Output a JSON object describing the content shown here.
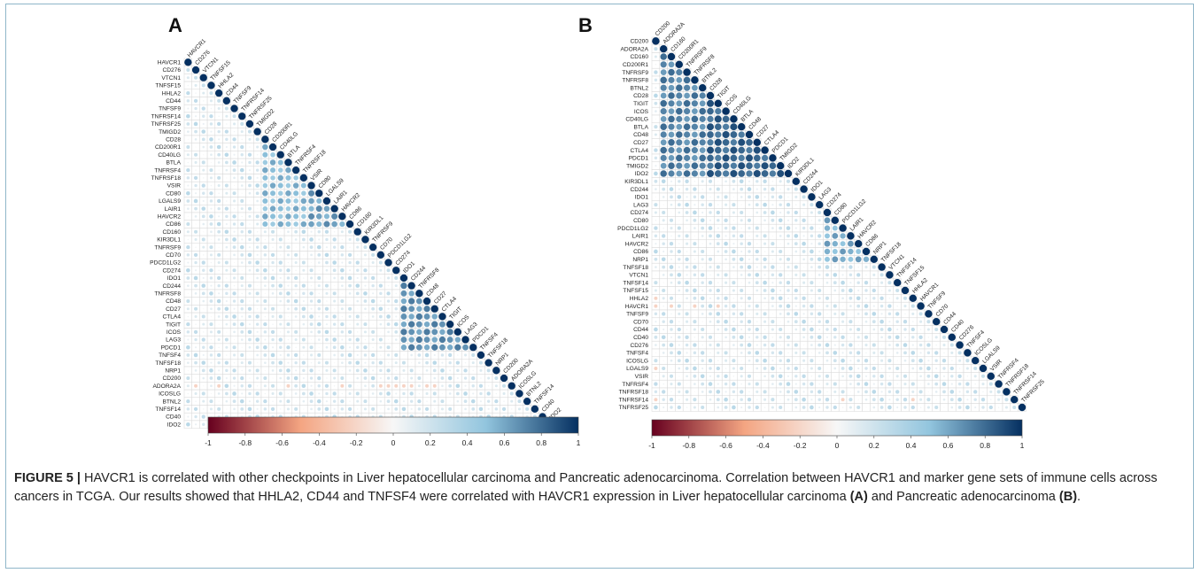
{
  "figure": {
    "caption_label": "FIGURE 5 |",
    "caption_text": " HAVCR1 is correlated with other checkpoints in Liver hepatocellular carcinoma and Pancreatic adenocarcinoma. Correlation between HAVCR1 and marker gene sets of immune cells across cancers in TCGA. Our results showed that HHLA2, CD44 and TNFSF4 were correlated with HAVCR1 expression in Liver hepatocellular carcinoma ",
    "caption_ref_a": "(A)",
    "caption_mid": " and Pancreatic adenocarcinoma ",
    "caption_ref_b": "(B)",
    "caption_end": "."
  },
  "colorbar": {
    "min": -1,
    "max": 1,
    "ticks": [
      -1,
      -0.8,
      -0.6,
      -0.4,
      -0.2,
      0,
      0.2,
      0.4,
      0.6,
      0.8,
      1
    ],
    "colors": {
      "neg": "#67001f",
      "mid": "#f7f7f7",
      "pos": "#053061"
    }
  },
  "chart_data": [
    {
      "type": "heatmap",
      "panel": "A",
      "shape": "lower-triangle correlation matrix (circles)",
      "genes": [
        "HAVCR1",
        "CD276",
        "VTCN1",
        "TNFSF15",
        "HHLA2",
        "CD44",
        "TNFSF9",
        "TNFRSF14",
        "TNFRSF25",
        "TMIGD2",
        "CD28",
        "CD200R1",
        "CD40LG",
        "BTLA",
        "TNFRSF4",
        "TNFRSF18",
        "VSIR",
        "CD80",
        "LGALS9",
        "LAIR1",
        "HAVCR2",
        "CD86",
        "CD160",
        "KIR3DL1",
        "TNFRSF9",
        "CD70",
        "PDCD1LG2",
        "CD274",
        "IDO1",
        "CD244",
        "TNFRSF8",
        "CD48",
        "CD27",
        "CTLA4",
        "TIGIT",
        "ICOS",
        "LAG3",
        "PDCD1",
        "TNFSF4",
        "TNFSF18",
        "NRP1",
        "CD200",
        "ADORA2A",
        "ICOSLG",
        "BTNL2",
        "TNFSF14",
        "CD40",
        "IDO2"
      ],
      "clusters": [
        [
          10,
          21,
          0.6
        ],
        [
          28,
          37,
          0.75
        ],
        [
          16,
          21,
          0.7
        ]
      ],
      "negative_cells": [
        [
          42,
          1
        ],
        [
          42,
          4
        ],
        [
          42,
          13
        ],
        [
          42,
          20
        ],
        [
          42,
          25
        ],
        [
          42,
          26
        ],
        [
          42,
          27
        ],
        [
          42,
          28
        ],
        [
          42,
          29
        ],
        [
          42,
          31
        ],
        [
          42,
          32
        ]
      ],
      "legend_range": [
        -1,
        1
      ]
    },
    {
      "type": "heatmap",
      "panel": "B",
      "shape": "lower-triangle correlation matrix (circles)",
      "genes": [
        "CD200",
        "ADORA2A",
        "CD160",
        "CD200R1",
        "TNFRSF9",
        "TNFRSF8",
        "BTNL2",
        "CD28",
        "TIGIT",
        "ICOS",
        "CD40LG",
        "BTLA",
        "CD48",
        "CD27",
        "CTLA4",
        "PDCD1",
        "TMIGD2",
        "IDO2",
        "KIR3DL1",
        "CD244",
        "IDO1",
        "LAG3",
        "CD274",
        "CD80",
        "PDCD1LG2",
        "LAIR1",
        "HAVCR2",
        "CD86",
        "NRP1",
        "TNFSF18",
        "VTCN1",
        "TNFSF14",
        "TNFSF15",
        "HHLA2",
        "HAVCR1",
        "TNFSF9",
        "CD70",
        "CD44",
        "CD40",
        "CD276",
        "TNFSF4",
        "ICOSLG",
        "LGALS9",
        "VSIR",
        "TNFRSF4",
        "TNFRSF18",
        "TNFRSF14",
        "TNFRSF25"
      ],
      "clusters": [
        [
          1,
          17,
          0.8
        ],
        [
          7,
          17,
          0.9
        ],
        [
          22,
          28,
          0.65
        ]
      ],
      "negative_cells": [
        [
          33,
          0
        ],
        [
          34,
          0
        ],
        [
          34,
          2
        ],
        [
          34,
          5
        ],
        [
          34,
          8
        ],
        [
          42,
          0
        ],
        [
          46,
          0
        ],
        [
          46,
          24
        ],
        [
          46,
          33
        ]
      ],
      "legend_range": [
        -1,
        1
      ]
    }
  ]
}
